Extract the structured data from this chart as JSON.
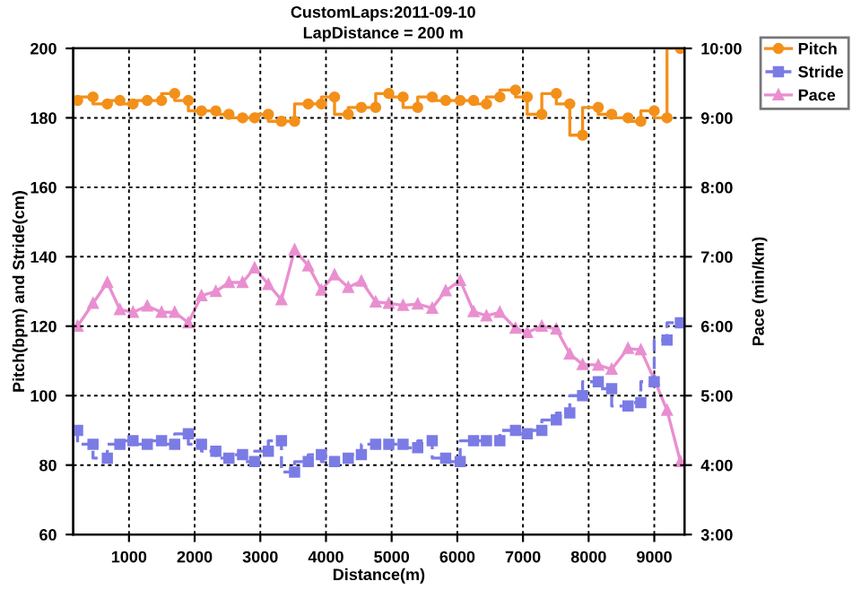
{
  "chart_data": {
    "type": "line",
    "title": "CustomLaps:2011-09-10",
    "subtitle": "LapDistance = 200 m",
    "xlabel": "Distance(m)",
    "ylabel": "Pitch(bpm) and Stride(cm)",
    "y2label": "Pace (min/km)",
    "x": [
      217,
      452,
      670,
      861,
      1061,
      1278,
      1496,
      1696,
      1904,
      2104,
      2322,
      2522,
      2730,
      2913,
      3122,
      3322,
      3522,
      3730,
      3930,
      4130,
      4339,
      4539,
      4757,
      4957,
      5174,
      5397,
      5618,
      5823,
      6044,
      6248,
      6444,
      6648,
      6887,
      7065,
      7287,
      7508,
      7713,
      7908,
      8147,
      8351,
      8600,
      8795,
      8999,
      9194,
      9398
    ],
    "series": [
      {
        "name": "Pitch",
        "type": "step",
        "color": "#f39019",
        "marker": "circle",
        "line_style": "solid",
        "values": [
          185,
          186,
          184,
          185,
          184,
          185,
          185,
          187,
          185,
          182,
          182,
          181,
          180,
          180,
          181,
          179,
          179,
          184,
          184,
          186,
          181,
          183,
          183,
          187,
          186,
          183,
          186,
          185,
          185,
          185,
          184,
          186,
          188,
          186,
          181,
          187,
          184,
          175,
          183,
          181,
          180,
          179,
          182,
          180,
          200
        ]
      },
      {
        "name": "Stride",
        "type": "step",
        "color": "#7b7be6",
        "marker": "square",
        "line_style": "dashed",
        "values": [
          90,
          86,
          82,
          86,
          87,
          86,
          87,
          86,
          89,
          86,
          84,
          82,
          83,
          81,
          84,
          87,
          78,
          81,
          83,
          81,
          82,
          83,
          86,
          86,
          86,
          85,
          87,
          82,
          81,
          87,
          87,
          87,
          90,
          89,
          90,
          93,
          95,
          100,
          104,
          102,
          97,
          98,
          104,
          116,
          121
        ]
      },
      {
        "name": "Pace",
        "axis": "y2",
        "color": "#e98fd0",
        "marker": "triangle",
        "line_style": "solid",
        "values": [
          6.0,
          6.33,
          6.63,
          6.24,
          6.2,
          6.29,
          6.2,
          6.2,
          6.05,
          6.44,
          6.5,
          6.63,
          6.63,
          6.84,
          6.6,
          6.38,
          7.1,
          6.87,
          6.52,
          6.74,
          6.56,
          6.65,
          6.35,
          6.33,
          6.3,
          6.32,
          6.26,
          6.51,
          6.66,
          6.21,
          6.15,
          6.2,
          5.97,
          5.91,
          6.0,
          5.96,
          5.6,
          5.45,
          5.44,
          5.38,
          5.68,
          5.66,
          5.23,
          4.79,
          4.05
        ]
      }
    ],
    "xlim": [
      150,
      9460
    ],
    "xticks": [
      1000,
      2000,
      3000,
      4000,
      5000,
      6000,
      7000,
      8000,
      9000
    ],
    "ylim": [
      60,
      200
    ],
    "yticks": [
      60,
      80,
      100,
      120,
      140,
      160,
      180,
      200
    ],
    "y2lim": [
      3,
      10
    ],
    "y2ticks": [
      {
        "value": 3,
        "label": "3:00"
      },
      {
        "value": 4,
        "label": "4:00"
      },
      {
        "value": 5,
        "label": "5:00"
      },
      {
        "value": 6,
        "label": "6:00"
      },
      {
        "value": 7,
        "label": "7:00"
      },
      {
        "value": 8,
        "label": "8:00"
      },
      {
        "value": 9,
        "label": "9:00"
      },
      {
        "value": 10,
        "label": "10:00"
      }
    ],
    "grid": true,
    "legend": "top right"
  }
}
